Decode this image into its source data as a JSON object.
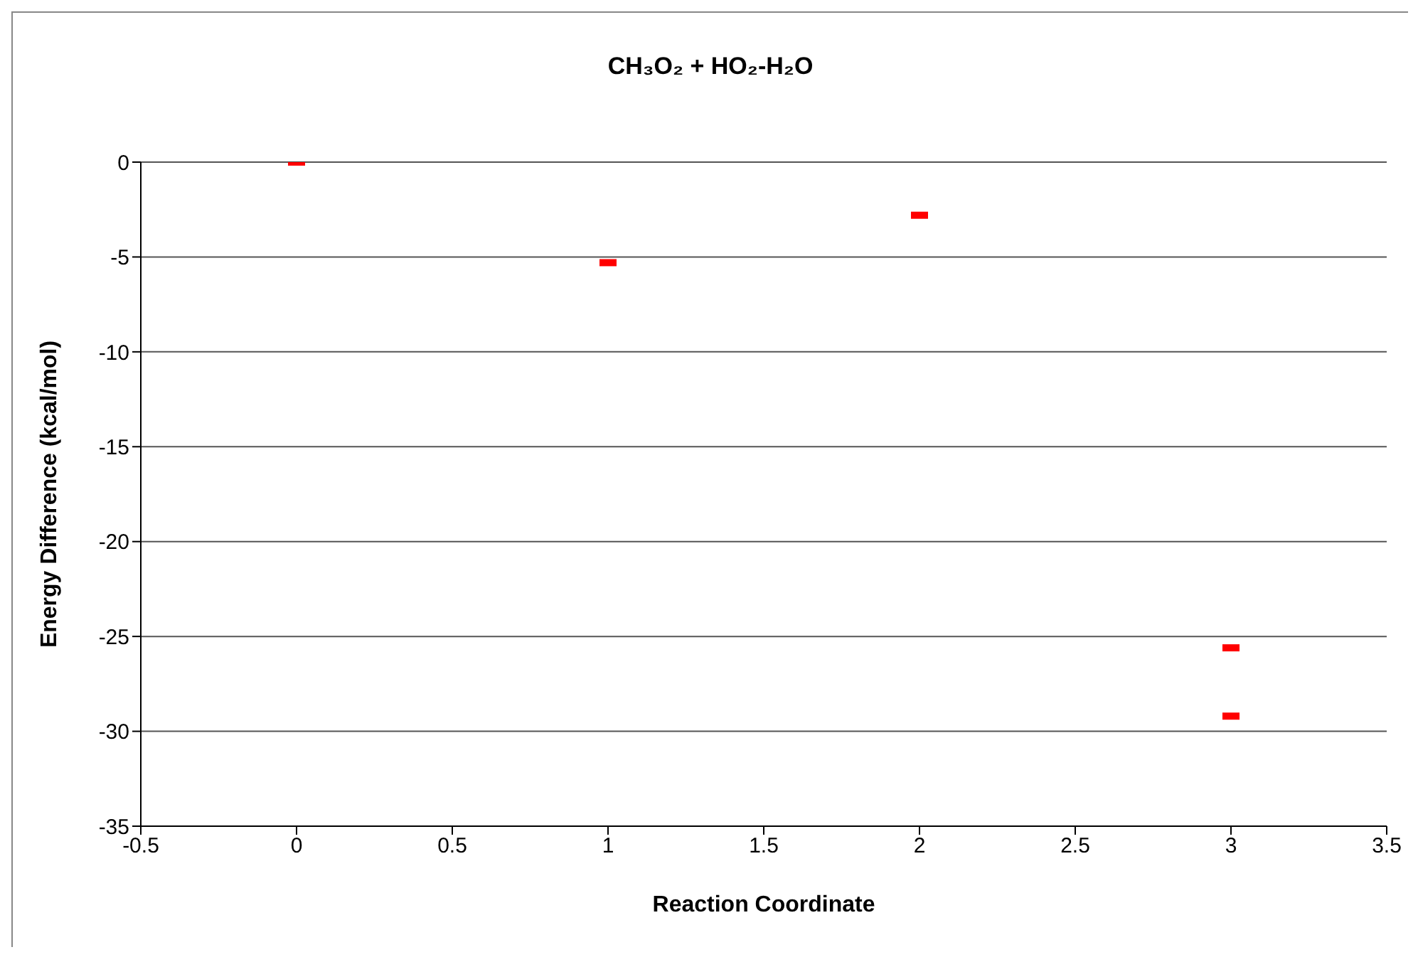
{
  "chart_data": {
    "type": "scatter",
    "title": "CH₃O₂ + HO₂-H₂O",
    "xlabel": "Reaction Coordinate",
    "ylabel": "Energy Difference (kcal/mol)",
    "series": [
      {
        "color": "#ff0000",
        "x": [
          0,
          1,
          2,
          3,
          3
        ],
        "values": [
          0,
          -5.3,
          -2.8,
          -25.6,
          -29.2
        ]
      }
    ],
    "xlim": [
      -0.5,
      3.5
    ],
    "xticks": [
      -0.5,
      0,
      0.5,
      1,
      1.5,
      2,
      2.5,
      3,
      3.5
    ],
    "ylim": [
      -35,
      0
    ],
    "yticks": [
      -35,
      -30,
      -25,
      -20,
      -15,
      -10,
      -5,
      0
    ],
    "grid": "y",
    "legend": false
  }
}
